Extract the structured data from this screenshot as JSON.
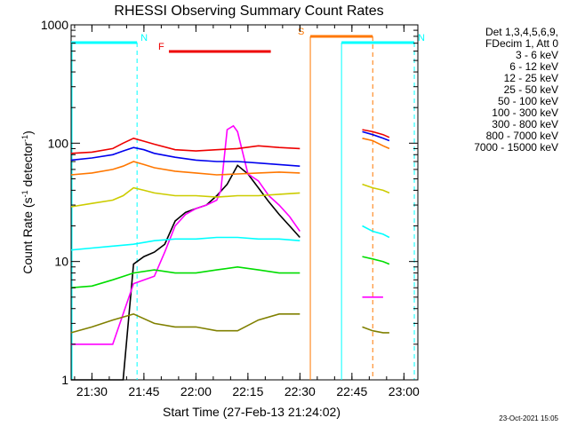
{
  "chart_data": {
    "type": "line",
    "title": "RHESSI Observing Summary Count Rates",
    "xlabel": "Start Time (27-Feb-13 21:24:02)",
    "ylabel_main": "Count Rate (s",
    "ylabel_sup1": "-1",
    "ylabel_mid": " detector",
    "ylabel_sup2": "-1",
    "ylabel_end": ")",
    "yscale": "log",
    "ylim": [
      1,
      1000
    ],
    "xlim_minutes": [
      21.4,
      23.067
    ],
    "x_unit": "hours (UT, 27-Feb-13)",
    "x_ticks": [
      {
        "hour": 21.5,
        "label": "21:30"
      },
      {
        "hour": 21.75,
        "label": "21:45"
      },
      {
        "hour": 22.0,
        "label": "22:00"
      },
      {
        "hour": 22.25,
        "label": "22:15"
      },
      {
        "hour": 22.5,
        "label": "22:30"
      },
      {
        "hour": 22.75,
        "label": "22:45"
      },
      {
        "hour": 23.0,
        "label": "23:00"
      }
    ],
    "y_ticks": [
      {
        "value": 1,
        "label": "1"
      },
      {
        "value": 10,
        "label": "10"
      },
      {
        "value": 100,
        "label": "100"
      },
      {
        "value": 1000,
        "label": "1000"
      }
    ],
    "legend_header": [
      "Det 1,3,4,5,6,9,",
      "FDecim 1, Att 0"
    ],
    "legend_position": "right",
    "series": [
      {
        "name": "3 - 6 keV",
        "color": "#000000",
        "segments": [
          [
            [
              21.4,
              1.0
            ],
            [
              21.55,
              1.0
            ],
            [
              21.65,
              1.0
            ],
            [
              21.7,
              9.5
            ],
            [
              21.75,
              11
            ],
            [
              21.8,
              12
            ],
            [
              21.85,
              14
            ],
            [
              21.9,
              22
            ],
            [
              21.95,
              26
            ],
            [
              22.0,
              28
            ],
            [
              22.05,
              30
            ],
            [
              22.1,
              36
            ],
            [
              22.15,
              45
            ],
            [
              22.2,
              65
            ],
            [
              22.25,
              55
            ],
            [
              22.3,
              42
            ],
            [
              22.35,
              32
            ],
            [
              22.4,
              25
            ],
            [
              22.45,
              20
            ],
            [
              22.5,
              16
            ]
          ]
        ]
      },
      {
        "name": "6 - 12 keV",
        "color": "#ff00ff",
        "segments": [
          [
            [
              21.4,
              2.0
            ],
            [
              21.5,
              2.0
            ],
            [
              21.6,
              2.0
            ],
            [
              21.7,
              6.5
            ],
            [
              21.8,
              7.5
            ],
            [
              21.85,
              12
            ],
            [
              21.9,
              20
            ],
            [
              21.95,
              25
            ],
            [
              22.0,
              28
            ],
            [
              22.05,
              30
            ],
            [
              22.1,
              33
            ],
            [
              22.12,
              40
            ],
            [
              22.15,
              130
            ],
            [
              22.18,
              140
            ],
            [
              22.2,
              125
            ],
            [
              22.25,
              55
            ],
            [
              22.3,
              48
            ],
            [
              22.35,
              36
            ],
            [
              22.4,
              30
            ],
            [
              22.45,
              24
            ],
            [
              22.5,
              18
            ]
          ],
          [
            [
              22.8,
              5.0
            ],
            [
              22.9,
              5.0
            ]
          ]
        ]
      },
      {
        "name": "12 - 25 keV",
        "color": "#00dd00",
        "segments": [
          [
            [
              21.4,
              6.0
            ],
            [
              21.5,
              6.2
            ],
            [
              21.6,
              7.0
            ],
            [
              21.7,
              8.0
            ],
            [
              21.8,
              8.5
            ],
            [
              21.9,
              8.0
            ],
            [
              22.0,
              8.0
            ],
            [
              22.1,
              8.5
            ],
            [
              22.2,
              9.0
            ],
            [
              22.3,
              8.5
            ],
            [
              22.4,
              8.0
            ],
            [
              22.5,
              8.0
            ]
          ],
          [
            [
              22.8,
              11
            ],
            [
              22.85,
              10.5
            ],
            [
              22.9,
              10
            ],
            [
              22.93,
              9.5
            ]
          ]
        ]
      },
      {
        "name": "25 - 50 keV",
        "color": "#00ffff",
        "segments": [
          [
            [
              21.4,
              12.5
            ],
            [
              21.5,
              13
            ],
            [
              21.6,
              13.5
            ],
            [
              21.7,
              14
            ],
            [
              21.8,
              15
            ],
            [
              21.9,
              15.5
            ],
            [
              22.0,
              15.5
            ],
            [
              22.1,
              16
            ],
            [
              22.2,
              16
            ],
            [
              22.3,
              15.5
            ],
            [
              22.4,
              15.5
            ],
            [
              22.5,
              15
            ]
          ],
          [
            [
              22.8,
              20
            ],
            [
              22.85,
              18
            ],
            [
              22.9,
              17
            ],
            [
              22.93,
              16
            ]
          ]
        ]
      },
      {
        "name": "50 - 100 keV",
        "color": "#cccc00",
        "segments": [
          [
            [
              21.4,
              29
            ],
            [
              21.5,
              31
            ],
            [
              21.6,
              33
            ],
            [
              21.65,
              36
            ],
            [
              21.7,
              42
            ],
            [
              21.75,
              40
            ],
            [
              21.8,
              38
            ],
            [
              21.9,
              36
            ],
            [
              22.0,
              36
            ],
            [
              22.1,
              35
            ],
            [
              22.2,
              36
            ],
            [
              22.3,
              36
            ],
            [
              22.4,
              37
            ],
            [
              22.5,
              38
            ]
          ],
          [
            [
              22.8,
              45
            ],
            [
              22.85,
              42
            ],
            [
              22.9,
              40
            ],
            [
              22.93,
              38
            ]
          ]
        ]
      },
      {
        "name": "100 - 300 keV",
        "color": "#ff7700",
        "segments": [
          [
            [
              21.4,
              54
            ],
            [
              21.5,
              56
            ],
            [
              21.6,
              60
            ],
            [
              21.65,
              64
            ],
            [
              21.7,
              70
            ],
            [
              21.75,
              66
            ],
            [
              21.8,
              62
            ],
            [
              21.9,
              58
            ],
            [
              22.0,
              56
            ],
            [
              22.1,
              54
            ],
            [
              22.2,
              55
            ],
            [
              22.3,
              56
            ],
            [
              22.4,
              57
            ],
            [
              22.5,
              56
            ]
          ],
          [
            [
              22.8,
              110
            ],
            [
              22.85,
              105
            ],
            [
              22.9,
              95
            ],
            [
              22.93,
              90
            ]
          ]
        ]
      },
      {
        "name": "300 - 800 keV",
        "color": "#0000ee",
        "segments": [
          [
            [
              21.4,
              72
            ],
            [
              21.5,
              75
            ],
            [
              21.6,
              80
            ],
            [
              21.65,
              86
            ],
            [
              21.7,
              92
            ],
            [
              21.75,
              88
            ],
            [
              21.8,
              82
            ],
            [
              21.9,
              76
            ],
            [
              22.0,
              72
            ],
            [
              22.1,
              70
            ],
            [
              22.2,
              70
            ],
            [
              22.3,
              68
            ],
            [
              22.4,
              66
            ],
            [
              22.5,
              64
            ]
          ],
          [
            [
              22.8,
              125
            ],
            [
              22.85,
              118
            ],
            [
              22.9,
              110
            ],
            [
              22.93,
              105
            ]
          ]
        ]
      },
      {
        "name": "800 - 7000 keV",
        "color": "#ee0000",
        "segments": [
          [
            [
              21.4,
              82
            ],
            [
              21.5,
              84
            ],
            [
              21.6,
              90
            ],
            [
              21.65,
              100
            ],
            [
              21.7,
              110
            ],
            [
              21.75,
              104
            ],
            [
              21.8,
              98
            ],
            [
              21.9,
              88
            ],
            [
              22.0,
              86
            ],
            [
              22.1,
              88
            ],
            [
              22.2,
              90
            ],
            [
              22.3,
              95
            ],
            [
              22.4,
              92
            ],
            [
              22.5,
              90
            ]
          ],
          [
            [
              22.8,
              130
            ],
            [
              22.85,
              125
            ],
            [
              22.9,
              118
            ],
            [
              22.93,
              112
            ]
          ]
        ]
      },
      {
        "name": "7000 - 15000 keV",
        "color": "#808000",
        "segments": [
          [
            [
              21.4,
              2.5
            ],
            [
              21.5,
              2.8
            ],
            [
              21.6,
              3.2
            ],
            [
              21.7,
              3.6
            ],
            [
              21.8,
              3.0
            ],
            [
              21.9,
              2.8
            ],
            [
              22.0,
              2.8
            ],
            [
              22.1,
              2.6
            ],
            [
              22.2,
              2.6
            ],
            [
              22.3,
              3.2
            ],
            [
              22.4,
              3.6
            ],
            [
              22.5,
              3.6
            ]
          ],
          [
            [
              22.8,
              2.8
            ],
            [
              22.85,
              2.6
            ],
            [
              22.9,
              2.5
            ],
            [
              22.93,
              2.5
            ]
          ]
        ]
      }
    ],
    "annotations": [
      {
        "label": "N",
        "color": "#00ffff",
        "bar": [
          21.4,
          21.717
        ],
        "vlines": [
          21.717
        ]
      },
      {
        "label": "N",
        "color": "#00ffff",
        "bar": [
          22.7,
          23.05
        ],
        "vlines": [
          22.7,
          23.05
        ]
      },
      {
        "label": "S",
        "color": "#ff7700",
        "bar": [
          22.55,
          22.85
        ],
        "vlines": [
          22.55,
          22.85
        ]
      },
      {
        "label": "F",
        "color": "#ee0000",
        "bar": [
          21.87,
          22.36
        ],
        "vlines": []
      }
    ],
    "footer_date": "23-Oct-2021 15:05"
  }
}
